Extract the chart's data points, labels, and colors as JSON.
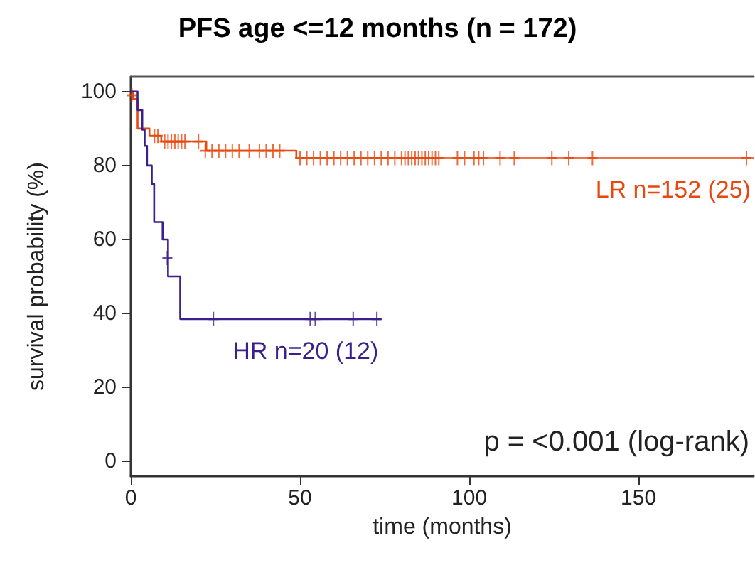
{
  "chart_data": {
    "type": "step",
    "title": "PFS age <=12 months (n = 172)",
    "xlabel": "time (months)",
    "ylabel": "survival probability (%)",
    "xlim": [
      0,
      184
    ],
    "xticks": [
      0,
      50,
      100,
      150
    ],
    "ylim": [
      -4,
      104
    ],
    "yticks": [
      0,
      20,
      40,
      60,
      80,
      100
    ],
    "grid": false,
    "legend": false,
    "series": [
      {
        "type": "step",
        "name": "LR n=152 (25)",
        "color": "#e8470e",
        "x": [
          0,
          0.6,
          2.0,
          5.5,
          9.0,
          22.3,
          48.9,
          184
        ],
        "values": [
          100,
          98,
          90,
          88,
          86.5,
          84,
          82,
          82
        ]
      },
      {
        "type": "step",
        "name": "HR n=20 (12)",
        "color": "#3b1f8a",
        "x": [
          0,
          2.0,
          3.4,
          4.1,
          4.8,
          6.2,
          6.9,
          9.4,
          11,
          14.6,
          74
        ],
        "values": [
          100,
          95,
          89.7,
          85.3,
          80,
          75,
          64.7,
          60,
          50,
          38.5,
          38.5
        ]
      },
      {
        "type": "scatter",
        "marker": "cross",
        "color": "#e8470e",
        "x": [
          0.3,
          7,
          8,
          10,
          11,
          12,
          13,
          14,
          15,
          16,
          20,
          22,
          24,
          26,
          28,
          30,
          32,
          35,
          38,
          40,
          42,
          44,
          50,
          52,
          54,
          56,
          58,
          60,
          62,
          64,
          66,
          68,
          70,
          72,
          74,
          76,
          78,
          80,
          81,
          82,
          83,
          84,
          85,
          86,
          87,
          88,
          89,
          90,
          91,
          96.5,
          98.6,
          101.4,
          102.8,
          104.2,
          109.1,
          113.3,
          124.4,
          129.4,
          136.4,
          181.9
        ],
        "values": [
          99,
          88,
          88,
          86.5,
          86.5,
          86.5,
          86.5,
          86.5,
          86.5,
          86.5,
          86.5,
          84,
          84,
          84,
          84,
          84,
          84,
          84,
          84,
          84,
          84,
          84,
          82,
          82,
          82,
          82,
          82,
          82,
          82,
          82,
          82,
          82,
          82,
          82,
          82,
          82,
          82,
          82,
          82,
          82,
          82,
          82,
          82,
          82,
          82,
          82,
          82,
          82,
          82,
          82,
          82,
          82,
          82,
          82,
          82,
          82,
          82,
          82,
          82,
          82
        ]
      },
      {
        "type": "scatter",
        "marker": "cross",
        "color": "#3b1f8a",
        "x": [
          10.8,
          24.4,
          53,
          54.5,
          65.7,
          72.7
        ],
        "values": [
          55,
          38.5,
          38.5,
          38.5,
          38.5,
          38.5
        ]
      }
    ],
    "annotations": [
      "p = <0.001 (log-rank)"
    ]
  }
}
